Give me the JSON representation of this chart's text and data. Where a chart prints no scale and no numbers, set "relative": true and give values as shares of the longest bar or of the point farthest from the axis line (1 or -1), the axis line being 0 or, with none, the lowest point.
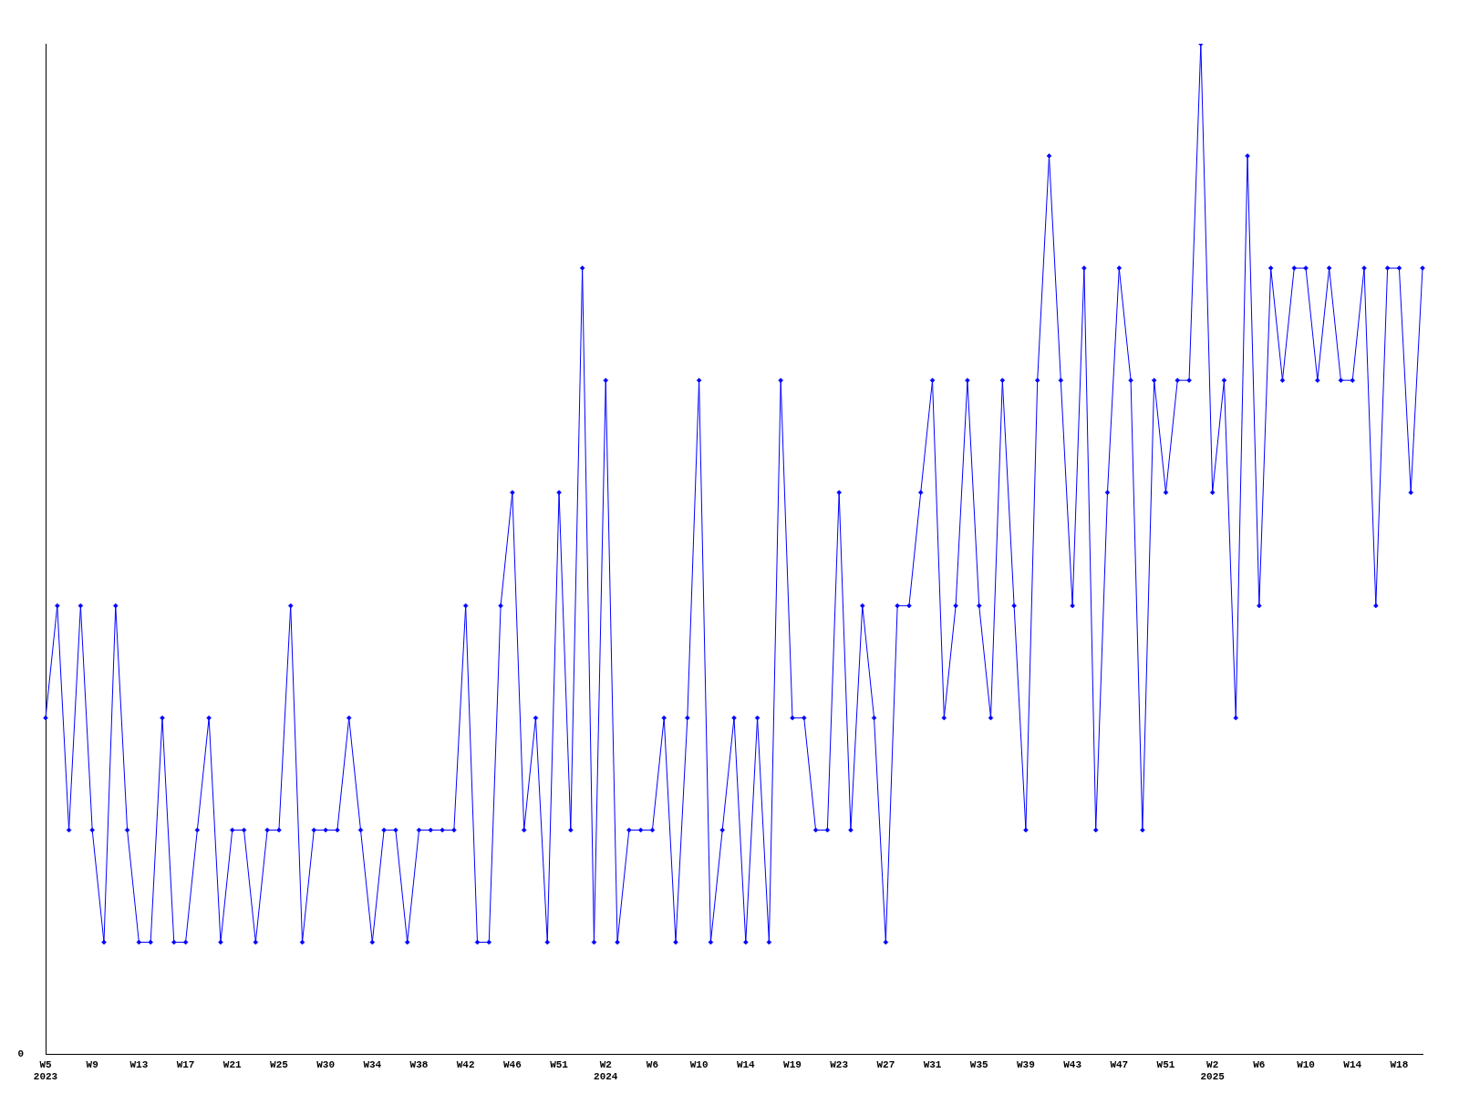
{
  "chart_data": {
    "type": "line",
    "relative": true,
    "marker": "diamond",
    "grid": false,
    "legend": false,
    "annotations": [
      "0"
    ],
    "categories": [
      "W5\n2023",
      null,
      null,
      null,
      "W9",
      null,
      null,
      null,
      "W13",
      null,
      null,
      null,
      "W17",
      null,
      null,
      null,
      "W21",
      null,
      null,
      null,
      "W25",
      null,
      null,
      null,
      "W30",
      null,
      null,
      null,
      "W34",
      null,
      null,
      null,
      "W38",
      null,
      null,
      null,
      "W42",
      null,
      null,
      null,
      "W46",
      null,
      null,
      null,
      "W51",
      null,
      null,
      null,
      "W2\n2024",
      null,
      null,
      null,
      "W6",
      null,
      null,
      null,
      "W10",
      null,
      null,
      null,
      "W14",
      null,
      null,
      null,
      "W19",
      null,
      null,
      null,
      "W23",
      null,
      null,
      null,
      "W27",
      null,
      null,
      null,
      "W31",
      null,
      null,
      null,
      "W35",
      null,
      null,
      null,
      "W39",
      null,
      null,
      null,
      "W43",
      null,
      null,
      null,
      "W47",
      null,
      null,
      null,
      "W51",
      null,
      null,
      null,
      "W2\n2025",
      null,
      null,
      null,
      "W6",
      null,
      null,
      null,
      "W10",
      null,
      null,
      null,
      "W14",
      null,
      null,
      null,
      "W18",
      null,
      null
    ],
    "series": [
      {
        "color": "#0000ff",
        "values": [
          0.333,
          0.444,
          0.222,
          0.444,
          0.222,
          0.111,
          0.444,
          0.222,
          0.111,
          0.111,
          0.333,
          0.111,
          0.111,
          0.222,
          0.333,
          0.111,
          0.222,
          0.222,
          0.111,
          0.222,
          0.222,
          0.444,
          0.111,
          0.222,
          0.222,
          0.222,
          0.333,
          0.222,
          0.111,
          0.222,
          0.222,
          0.111,
          0.222,
          0.222,
          0.222,
          0.222,
          0.444,
          0.111,
          0.111,
          0.444,
          0.556,
          0.222,
          0.333,
          0.111,
          0.556,
          0.222,
          0.778,
          0.111,
          0.667,
          0.111,
          0.222,
          0.222,
          0.222,
          0.333,
          0.111,
          0.333,
          0.667,
          0.111,
          0.222,
          0.333,
          0.111,
          0.333,
          0.111,
          0.667,
          0.333,
          0.333,
          0.222,
          0.222,
          0.556,
          0.222,
          0.444,
          0.333,
          0.111,
          0.444,
          0.444,
          0.556,
          0.667,
          0.333,
          0.444,
          0.667,
          0.444,
          0.333,
          0.667,
          0.444,
          0.222,
          0.667,
          0.889,
          0.667,
          0.444,
          0.778,
          0.222,
          0.556,
          0.778,
          0.667,
          0.222,
          0.667,
          0.556,
          0.667,
          0.667,
          1,
          0.556,
          0.667,
          0.333,
          0.889,
          0.444,
          0.778,
          0.667,
          0.778,
          0.778,
          0.667,
          0.778,
          0.667,
          0.667,
          0.778,
          0.444,
          0.778,
          0.778,
          0.556,
          0.778
        ]
      }
    ]
  }
}
